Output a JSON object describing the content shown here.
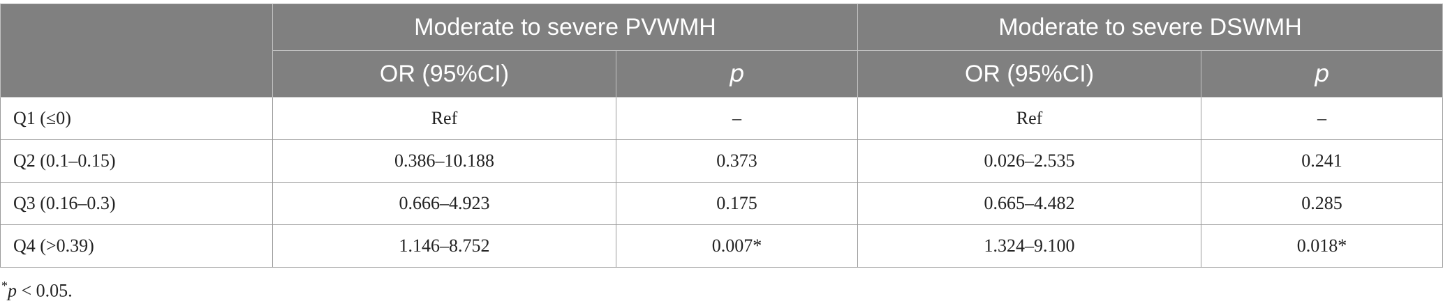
{
  "table": {
    "group_headers": [
      "Moderate to severe PVWMH",
      "Moderate to severe DSWMH"
    ],
    "sub_headers": [
      "OR (95%CI)",
      "p",
      "OR (95%CI)",
      "p"
    ],
    "rows": [
      {
        "label": "Q1 (≤0)",
        "cells": [
          "Ref",
          "–",
          "Ref",
          "–"
        ]
      },
      {
        "label": "Q2 (0.1–0.15)",
        "cells": [
          "0.386–10.188",
          "0.373",
          "0.026–2.535",
          "0.241"
        ]
      },
      {
        "label": "Q3 (0.16–0.3)",
        "cells": [
          "0.666–4.923",
          "0.175",
          "0.665–4.482",
          "0.285"
        ]
      },
      {
        "label": "Q4 (>0.39)",
        "cells": [
          "1.146–8.752",
          "0.007*",
          "1.324–9.100",
          "0.018*"
        ]
      }
    ]
  },
  "footnote": {
    "symbol": "*",
    "variable": "p",
    "condition": " < 0.05."
  },
  "colors": {
    "header_background": "#808080",
    "header_text": "#ffffff",
    "body_text": "#222222"
  }
}
